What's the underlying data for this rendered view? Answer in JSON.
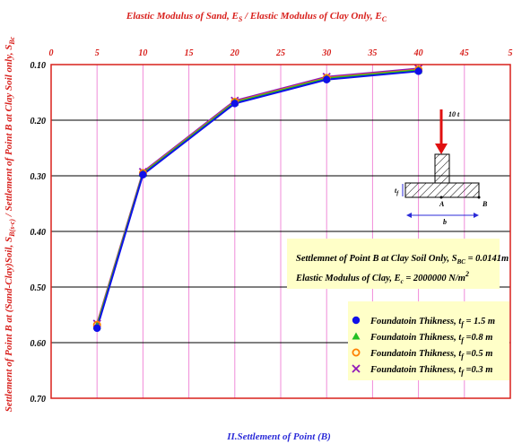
{
  "chart_data": {
    "type": "line",
    "title": "Elastic Modulus of Sand, E_S / Elastic Modulus of Clay Only, E_C",
    "title_parts": {
      "main1": "Elastic Modulus of Sand, E",
      "sub1": "S",
      "main2": " / Elastic Modulus of Clay Only, E",
      "sub2": "C"
    },
    "ylabel": "Settlement of Point B at (Sand-Clay)Soil, S_B(s-c) / Settlement of Point B at Clay Soil only, S_Bc",
    "ylabel_parts": {
      "a": "Settlement of Point B at (Sand-Clay)Soil, S",
      "a_sub": "B(s-c)",
      "b": " / Settlement of Point B at Clay Soil only, S",
      "b_sub": "Bc"
    },
    "caption": "II.Settlement of Point (B)",
    "x_ticks": [
      "0",
      "5",
      "10",
      "15",
      "20",
      "25",
      "30",
      "35",
      "40",
      "45",
      "5"
    ],
    "y_ticks": [
      "0.10",
      "0.20",
      "0.30",
      "0.40",
      "0.50",
      "0.60",
      "0.70"
    ],
    "xlim": [
      0,
      50
    ],
    "ylim": [
      0.1,
      0.7
    ],
    "y_inverted": true,
    "x_axis_position": "top",
    "grid": true,
    "legend_position": "bottom-right",
    "x": [
      5,
      10,
      20,
      30,
      40
    ],
    "series": [
      {
        "name": "Foundatoin Thikness, t_f = 1.5 m",
        "label_main": "Foundatoin Thikness, t",
        "label_sub": "f",
        "label_tail": " = 1.5 m",
        "marker": "circle",
        "color": "#1010e8",
        "values": [
          0.574,
          0.298,
          0.17,
          0.127,
          0.112
        ]
      },
      {
        "name": "Foundatoin Thikness, t_f =0.8 m",
        "label_main": "Foundatoin Thikness, t",
        "label_sub": "f",
        "label_tail": " =0.8 m",
        "marker": "triangle",
        "color": "#22c022",
        "values": [
          0.57,
          0.296,
          0.168,
          0.125,
          0.11
        ]
      },
      {
        "name": "Foundatoin Thikness, t_f =0.5 m",
        "label_main": "Foundatoin Thikness, t",
        "label_sub": "f",
        "label_tail": " =0.5 m",
        "marker": "open-circle",
        "color": "#ff8000",
        "values": [
          0.568,
          0.295,
          0.167,
          0.124,
          0.109
        ]
      },
      {
        "name": "Foundatoin Thikness, t_f =0.3 m",
        "label_main": "Foundatoin Thikness, t",
        "label_sub": "f",
        "label_tail": " =0.3 m",
        "marker": "x",
        "color": "#9018b8",
        "values": [
          0.566,
          0.293,
          0.165,
          0.122,
          0.107
        ]
      }
    ],
    "annotation": {
      "line1_main": "Settlemnet of Point B at Clay Soil Only, S",
      "line1_sub": "BC",
      "line1_tail": " = 0.0141m",
      "line2_main": "Elastic Modulus of Clay, E",
      "line2_sub": "c",
      "line2_tail": " = 2000000 N/m",
      "line2_sup": "2"
    },
    "sketch": {
      "load": "10 t",
      "tf": "t",
      "tf_sub": "f",
      "point_a": "A",
      "point_b": "B",
      "width": "b"
    },
    "colors": {
      "frame": "#d8201c",
      "vgrid": "#f08bd8",
      "hgrid": "#000000",
      "legend_bg": "#ffffc8",
      "note_bg": "#ffffc8",
      "title": "#d8201c",
      "caption": "#2b2bd8"
    }
  }
}
